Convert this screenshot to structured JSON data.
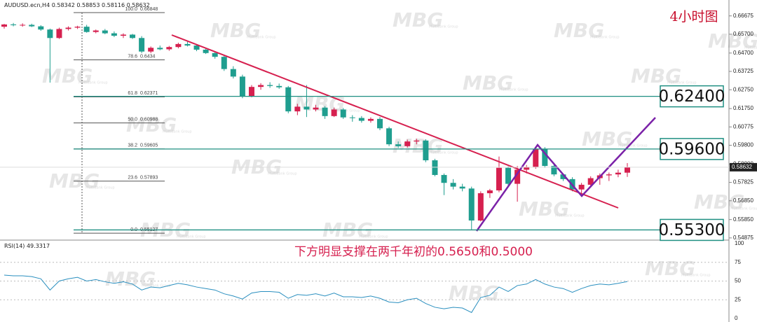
{
  "watermark": {
    "logo": "MBG",
    "tagline": "MultiBank Group"
  },
  "chart_data": [
    {
      "type": "candlestick",
      "symbol": "AUDUSD.ecn,H4",
      "title": "4小时图",
      "annotation": "下方明显支撑在两千年初的0.5650和0.5000",
      "up_color": "#d6204f",
      "down_color": "#1f9e8f",
      "open": [
        0.661,
        0.6622,
        0.6618,
        0.662,
        0.6612,
        0.6595,
        0.655,
        0.6598,
        0.6605,
        0.661,
        0.6582,
        0.659,
        0.6575,
        0.6562,
        0.6568,
        0.655,
        0.6478,
        0.6498,
        0.649,
        0.6502,
        0.6518,
        0.651,
        0.6488,
        0.647,
        0.645,
        0.6385,
        0.6345,
        0.624,
        0.629,
        0.63,
        0.6295,
        0.6288,
        0.616,
        0.6185,
        0.617,
        0.618,
        0.6135,
        0.617,
        0.6128,
        0.6125,
        0.611,
        0.612,
        0.607,
        0.5985,
        0.5975,
        0.6,
        0.6005,
        0.59,
        0.5822,
        0.578,
        0.576,
        0.575,
        0.558,
        0.5725,
        0.574,
        0.586,
        0.5775,
        0.585,
        0.5865,
        0.596,
        0.587,
        0.5825,
        0.58,
        0.5745,
        0.577,
        0.5805,
        0.582,
        0.5825,
        0.58342
      ],
      "high": [
        0.6625,
        0.663,
        0.6628,
        0.6626,
        0.6618,
        0.66,
        0.6605,
        0.6612,
        0.6615,
        0.662,
        0.6595,
        0.6598,
        0.6585,
        0.6575,
        0.6572,
        0.656,
        0.6505,
        0.651,
        0.6508,
        0.6525,
        0.653,
        0.6515,
        0.6495,
        0.6478,
        0.646,
        0.64,
        0.6355,
        0.63,
        0.631,
        0.6315,
        0.6308,
        0.6295,
        0.62,
        0.63,
        0.6195,
        0.6188,
        0.618,
        0.6178,
        0.614,
        0.6135,
        0.6128,
        0.613,
        0.6078,
        0.6,
        0.601,
        0.6015,
        0.6012,
        0.5908,
        0.583,
        0.58,
        0.5775,
        0.576,
        0.5735,
        0.5748,
        0.592,
        0.5868,
        0.587,
        0.5875,
        0.5968,
        0.597,
        0.588,
        0.583,
        0.581,
        0.578,
        0.5815,
        0.583,
        0.5835,
        0.585,
        0.58853
      ],
      "low": [
        0.66,
        0.6612,
        0.661,
        0.6608,
        0.6588,
        0.6313,
        0.6545,
        0.659,
        0.6598,
        0.6578,
        0.6575,
        0.657,
        0.6555,
        0.655,
        0.6545,
        0.647,
        0.647,
        0.6485,
        0.6482,
        0.6495,
        0.6505,
        0.648,
        0.6465,
        0.644,
        0.6375,
        0.6335,
        0.623,
        0.6235,
        0.6275,
        0.6285,
        0.628,
        0.615,
        0.614,
        0.613,
        0.616,
        0.612,
        0.613,
        0.612,
        0.6105,
        0.61,
        0.61,
        0.606,
        0.5975,
        0.5965,
        0.5968,
        0.5985,
        0.589,
        0.5815,
        0.5715,
        0.5745,
        0.5735,
        0.553,
        0.5575,
        0.57,
        0.573,
        0.576,
        0.568,
        0.583,
        0.5855,
        0.586,
        0.5815,
        0.579,
        0.5735,
        0.572,
        0.5755,
        0.577,
        0.579,
        0.581,
        0.58116
      ],
      "close": [
        0.6622,
        0.6618,
        0.662,
        0.6612,
        0.6595,
        0.655,
        0.6598,
        0.6605,
        0.661,
        0.6582,
        0.659,
        0.6575,
        0.6562,
        0.6568,
        0.655,
        0.6478,
        0.6498,
        0.649,
        0.6502,
        0.6518,
        0.651,
        0.6488,
        0.647,
        0.645,
        0.6385,
        0.6345,
        0.624,
        0.629,
        0.63,
        0.6295,
        0.6288,
        0.616,
        0.6185,
        0.617,
        0.618,
        0.6135,
        0.617,
        0.6128,
        0.6125,
        0.611,
        0.612,
        0.607,
        0.5985,
        0.5975,
        0.6,
        0.6005,
        0.59,
        0.5822,
        0.578,
        0.576,
        0.575,
        0.558,
        0.5725,
        0.574,
        0.586,
        0.5775,
        0.585,
        0.5865,
        0.596,
        0.587,
        0.5825,
        0.58,
        0.5745,
        0.577,
        0.5805,
        0.582,
        0.5825,
        0.58342,
        0.58632
      ],
      "ylim": [
        0.5487,
        0.6752
      ],
      "yticks": [
        0.66675,
        {
          "value": 0.657,
          "label": "0.65700"
        },
        {
          "value": 0.647,
          "label": "0.64700"
        },
        0.63725,
        {
          "value": 0.6275,
          "label": "0.62750"
        },
        {
          "value": 0.6175,
          "label": "0.61750"
        },
        0.60775,
        {
          "value": 0.598,
          "label": "0.59800"
        },
        {
          "value": 0.588,
          "label": "0.58800"
        },
        0.57825,
        {
          "value": 0.5685,
          "label": "0.56850"
        },
        {
          "value": 0.5585,
          "label": "0.55850"
        },
        0.54875
      ],
      "fib_levels": [
        {
          "ratio": {
            "value": 100,
            "label": "100.0"
          },
          "price": 0.66848
        },
        {
          "ratio": 78.6,
          "price": 0.6434
        },
        {
          "ratio": 61.8,
          "price": 0.62371
        },
        {
          "ratio": {
            "value": 50,
            "label": "50.0"
          },
          "price": 0.60988
        },
        {
          "ratio": 38.2,
          "price": 0.59605
        },
        {
          "ratio": 23.6,
          "price": 0.57893
        },
        {
          "ratio": {
            "value": 0,
            "label": "0.0"
          },
          "price": 0.55127
        }
      ],
      "levels": [
        {
          "value": 0.624,
          "label": "0.62400"
        },
        {
          "value": 0.596,
          "label": "0.59600"
        },
        {
          "value": 0.553,
          "label": "0.55300"
        }
      ]
    },
    {
      "type": "line",
      "name": "RSI(14)",
      "color": "#2a8fbf",
      "values": [
        58,
        57,
        57,
        56,
        53,
        38,
        50,
        53,
        55,
        50,
        52,
        49,
        47,
        49,
        46,
        38,
        42,
        41,
        44,
        47,
        45,
        42,
        40,
        38,
        33,
        30,
        26,
        34,
        36,
        36,
        35,
        27,
        32,
        31,
        33,
        30,
        34,
        29,
        29,
        28,
        30,
        27,
        22,
        21,
        25,
        27,
        20,
        15,
        13,
        15,
        14,
        8,
        28,
        31,
        42,
        36,
        44,
        46,
        52,
        46,
        42,
        40,
        35,
        40,
        44,
        46,
        45,
        47,
        49.3317
      ],
      "ylim": [
        0,
        100
      ],
      "yticks": [
        100,
        75,
        50,
        25,
        0
      ]
    }
  ]
}
